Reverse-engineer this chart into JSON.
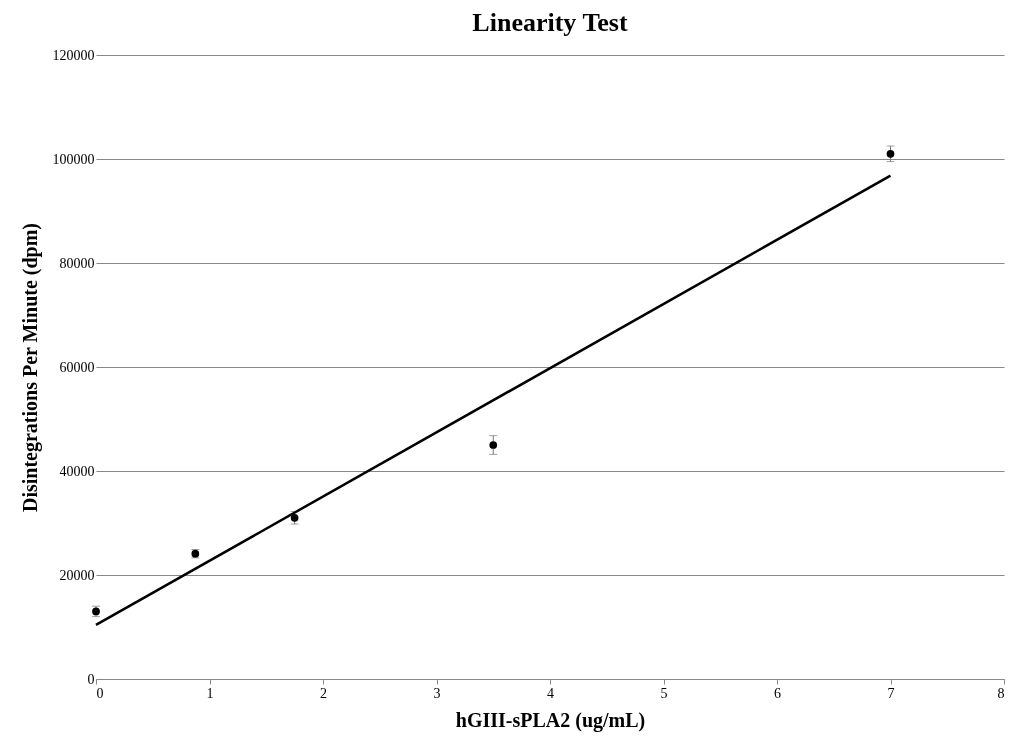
{
  "chart_data": {
    "type": "scatter",
    "title": "Linearity Test",
    "xlabel": "hGIII-sPLA2 (ug/mL)",
    "ylabel": "Disintegrations Per Minute (dpm)",
    "xlim": [
      0,
      8
    ],
    "xticks": [
      0,
      1,
      2,
      3,
      4,
      5,
      6,
      7,
      8
    ],
    "ylim": [
      0,
      120000
    ],
    "yticks": [
      0,
      20000,
      40000,
      60000,
      80000,
      100000,
      120000
    ],
    "grid": "y",
    "marker": "circle",
    "series": [
      {
        "color": "#000000",
        "x": [
          0,
          0.875,
          1.75,
          3.5,
          7
        ],
        "values": [
          13000,
          24100,
          31000,
          45000,
          101000
        ],
        "errors": [
          1000,
          800,
          1200,
          1800,
          1500
        ]
      },
      {
        "type": "line",
        "color": "#000000",
        "line_style": "solid",
        "marker": "none",
        "x": [
          0,
          7
        ],
        "values": [
          10400,
          96800
        ]
      }
    ]
  }
}
